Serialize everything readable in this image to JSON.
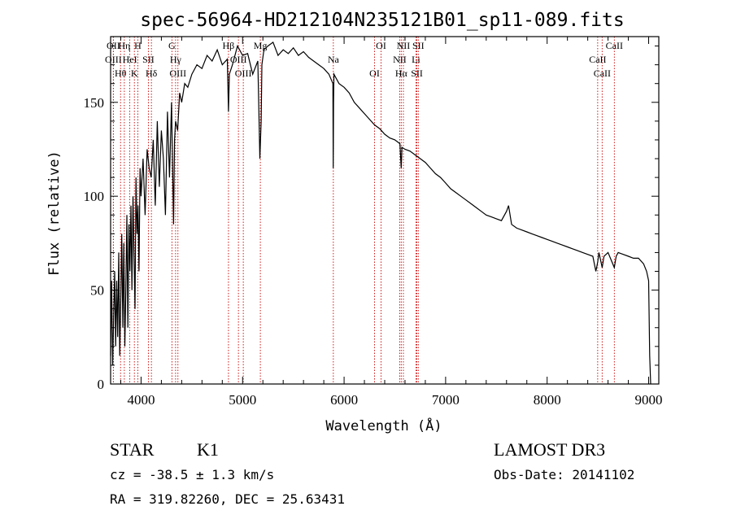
{
  "chart_data": {
    "type": "line",
    "title": "spec-56964-HD212104N235121B01_sp11-089.fits",
    "xlabel": "Wavelength (Å)",
    "ylabel": "Flux (relative)",
    "xlim": [
      3700,
      9100
    ],
    "ylim": [
      0,
      185
    ],
    "xticks": [
      4000,
      5000,
      6000,
      7000,
      8000,
      9000
    ],
    "yticks": [
      0,
      50,
      100,
      150
    ],
    "series": [
      {
        "name": "spectrum",
        "x": [
          3700,
          3710,
          3720,
          3730,
          3740,
          3750,
          3760,
          3770,
          3780,
          3790,
          3800,
          3810,
          3820,
          3830,
          3840,
          3850,
          3860,
          3870,
          3880,
          3890,
          3900,
          3910,
          3920,
          3930,
          3940,
          3950,
          3960,
          3970,
          3980,
          3990,
          4000,
          4020,
          4040,
          4060,
          4080,
          4100,
          4120,
          4140,
          4160,
          4180,
          4200,
          4220,
          4240,
          4260,
          4280,
          4300,
          4320,
          4330,
          4340,
          4360,
          4380,
          4400,
          4430,
          4460,
          4500,
          4550,
          4600,
          4650,
          4700,
          4750,
          4800,
          4850,
          4861,
          4870,
          4900,
          4950,
          5000,
          5050,
          5100,
          5150,
          5170,
          5183,
          5190,
          5210,
          5250,
          5300,
          5350,
          5400,
          5450,
          5500,
          5550,
          5600,
          5650,
          5700,
          5750,
          5800,
          5850,
          5890,
          5893,
          5896,
          5900,
          5950,
          6000,
          6050,
          6100,
          6150,
          6200,
          6250,
          6300,
          6350,
          6400,
          6450,
          6500,
          6550,
          6563,
          6570,
          6600,
          6650,
          6700,
          6750,
          6800,
          6850,
          6900,
          6950,
          7000,
          7050,
          7100,
          7150,
          7200,
          7250,
          7300,
          7350,
          7400,
          7450,
          7500,
          7550,
          7600,
          7620,
          7650,
          7700,
          7750,
          7800,
          7850,
          7900,
          7950,
          8000,
          8050,
          8100,
          8150,
          8200,
          8250,
          8300,
          8350,
          8400,
          8450,
          8480,
          8498,
          8510,
          8542,
          8560,
          8600,
          8662,
          8680,
          8700,
          8750,
          8800,
          8850,
          8900,
          8950,
          8980,
          9000,
          9010,
          9020
        ],
        "y": [
          15,
          55,
          10,
          35,
          60,
          20,
          55,
          25,
          70,
          15,
          45,
          80,
          30,
          75,
          20,
          50,
          90,
          30,
          85,
          60,
          95,
          50,
          100,
          70,
          40,
          110,
          80,
          95,
          60,
          115,
          100,
          120,
          90,
          125,
          115,
          110,
          130,
          95,
          140,
          105,
          135,
          120,
          90,
          145,
          110,
          150,
          85,
          130,
          140,
          135,
          155,
          150,
          160,
          158,
          165,
          170,
          168,
          175,
          172,
          178,
          170,
          173,
          145,
          165,
          170,
          180,
          175,
          176,
          165,
          172,
          120,
          140,
          170,
          178,
          180,
          182,
          175,
          178,
          176,
          179,
          175,
          177,
          174,
          172,
          170,
          168,
          165,
          160,
          115,
          150,
          165,
          160,
          158,
          155,
          150,
          147,
          144,
          141,
          138,
          136,
          133,
          131,
          130,
          128,
          115,
          126,
          125,
          124,
          122,
          120,
          118,
          115,
          112,
          110,
          107,
          104,
          102,
          100,
          98,
          96,
          94,
          92,
          90,
          89,
          88,
          87,
          92,
          95,
          85,
          83,
          82,
          81,
          80,
          79,
          78,
          77,
          76,
          75,
          74,
          73,
          72,
          71,
          70,
          69,
          68,
          60,
          65,
          70,
          62,
          68,
          70,
          62,
          68,
          70,
          69,
          68,
          67,
          67,
          64,
          60,
          55,
          15,
          0
        ]
      }
    ],
    "lines": [
      {
        "name": "OII",
        "wavelength": 3727
      },
      {
        "name": "OIII",
        "wavelength": 3727
      },
      {
        "name": "Hθ",
        "wavelength": 3798
      },
      {
        "name": "Hη",
        "wavelength": 3835
      },
      {
        "name": "HeI",
        "wavelength": 3889
      },
      {
        "name": "K",
        "wavelength": 3934
      },
      {
        "name": "H",
        "wavelength": 3968
      },
      {
        "name": "SII",
        "wavelength": 4072
      },
      {
        "name": "Hδ",
        "wavelength": 4102
      },
      {
        "name": "G",
        "wavelength": 4304
      },
      {
        "name": "Hγ",
        "wavelength": 4340
      },
      {
        "name": "OIII",
        "wavelength": 4363
      },
      {
        "name": "Hβ",
        "wavelength": 4861
      },
      {
        "name": "OIII",
        "wavelength": 4959
      },
      {
        "name": "OIII",
        "wavelength": 5007
      },
      {
        "name": "Mg",
        "wavelength": 5175
      },
      {
        "name": "Na",
        "wavelength": 5894
      },
      {
        "name": "OI",
        "wavelength": 6300
      },
      {
        "name": "OI",
        "wavelength": 6364
      },
      {
        "name": "NII",
        "wavelength": 6548
      },
      {
        "name": "Hα",
        "wavelength": 6563
      },
      {
        "name": "NII",
        "wavelength": 6584
      },
      {
        "name": "Li",
        "wavelength": 6708
      },
      {
        "name": "SII",
        "wavelength": 6717
      },
      {
        "name": "SII",
        "wavelength": 6731
      },
      {
        "name": "CaII",
        "wavelength": 8498
      },
      {
        "name": "CaII",
        "wavelength": 8542
      },
      {
        "name": "CaII",
        "wavelength": 8662
      }
    ]
  },
  "info": {
    "object_class": "STAR",
    "subclass": "K1",
    "survey": "LAMOST DR3",
    "redshift": "cz = -38.5 ± 1.3 km/s",
    "obs_date": "Obs-Date: 20141102",
    "coords": "RA = 319.82260, DEC =  25.63431"
  },
  "colors": {
    "spectrum": "#000000",
    "line_marker": "#cc0000",
    "axis": "#000000"
  }
}
